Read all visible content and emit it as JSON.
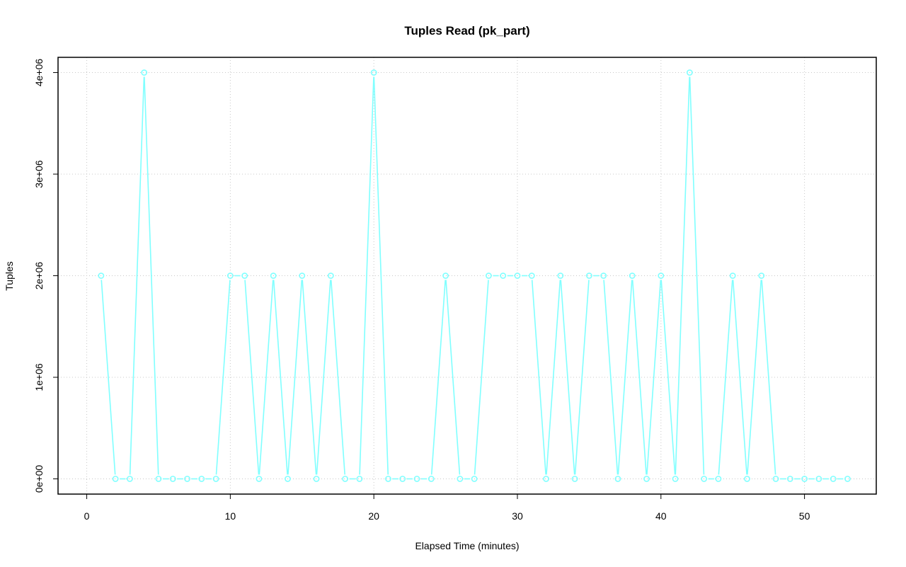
{
  "chart_data": {
    "type": "line",
    "title": "Tuples Read (pk_part)",
    "xlabel": "Elapsed Time (minutes)",
    "ylabel": "Tuples",
    "xlim": [
      -2,
      55
    ],
    "ylim": [
      -150000,
      4150000
    ],
    "xticks": [
      0,
      10,
      20,
      30,
      40,
      50
    ],
    "xtick_labels": [
      "0",
      "10",
      "20",
      "30",
      "40",
      "50"
    ],
    "yticks": [
      0,
      1000000,
      2000000,
      3000000,
      4000000
    ],
    "ytick_labels": [
      "0e+00",
      "1e+06",
      "2e+06",
      "3e+06",
      "4e+06"
    ],
    "grid": true,
    "color": "#80ffff",
    "series": [
      {
        "x": [
          1,
          2,
          3,
          4,
          5,
          6,
          7,
          8,
          9,
          10,
          11,
          12,
          13,
          14,
          15,
          16,
          17,
          18,
          19,
          20,
          21,
          22,
          23,
          24,
          25,
          26,
          27,
          28,
          29,
          30,
          31,
          32,
          33,
          34,
          35,
          36,
          37,
          38,
          39,
          40,
          41,
          42,
          43,
          44,
          45,
          46,
          47,
          48,
          49,
          50,
          51,
          52,
          53
        ],
        "values": [
          2000000,
          0,
          0,
          4000000,
          0,
          0,
          0,
          0,
          0,
          2000000,
          2000000,
          0,
          2000000,
          0,
          2000000,
          0,
          2000000,
          0,
          0,
          4000000,
          0,
          0,
          0,
          0,
          2000000,
          0,
          0,
          2000000,
          2000000,
          2000000,
          2000000,
          0,
          2000000,
          0,
          2000000,
          2000000,
          0,
          2000000,
          0,
          2000000,
          0,
          4000000,
          0,
          0,
          2000000,
          0,
          2000000,
          0,
          0,
          0,
          0,
          0,
          0
        ]
      }
    ]
  }
}
